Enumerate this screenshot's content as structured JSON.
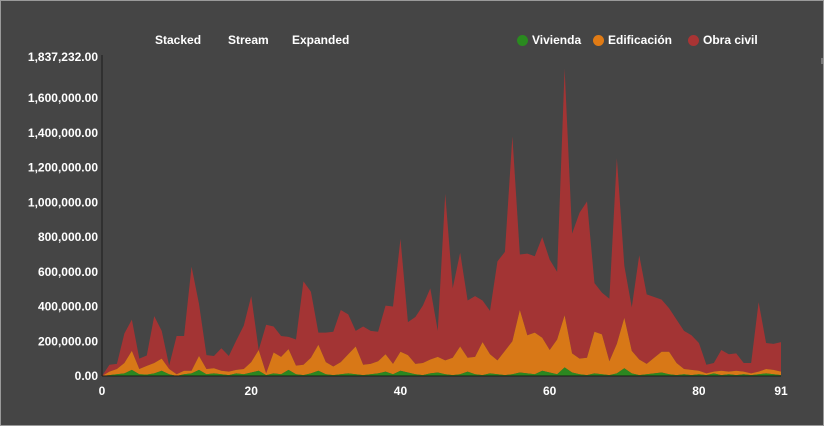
{
  "controls": {
    "stacked": "Stacked",
    "stream": "Stream",
    "expanded": "Expanded"
  },
  "chart_data": {
    "type": "area",
    "stacked": true,
    "x_range": [
      0,
      91
    ],
    "ylim": [
      0,
      1837232
    ],
    "y_max_label": "1,837,232.00",
    "y_ticks": [
      0,
      200000,
      400000,
      600000,
      800000,
      1000000,
      1200000,
      1400000,
      1600000
    ],
    "y_tick_labels": [
      "0.00",
      "200,000.00",
      "400,000.00",
      "600,000.00",
      "800,000.00",
      "1,000,000.00",
      "1,200,000.00",
      "1,400,000.00",
      "1,600,000.00"
    ],
    "x_ticks": [
      0,
      20,
      40,
      60,
      80,
      91
    ],
    "x_tick_labels": [
      "0",
      "20",
      "40",
      "60",
      "80",
      "91"
    ],
    "legend_position": "top-right",
    "grid": false,
    "series": [
      {
        "name": "Vivienda",
        "color": "#2a8a1f",
        "values": [
          0,
          5000,
          10000,
          15000,
          35000,
          10000,
          8000,
          15000,
          30000,
          10000,
          0,
          10000,
          15000,
          35000,
          10000,
          15000,
          10000,
          5000,
          15000,
          10000,
          20000,
          30000,
          5000,
          15000,
          10000,
          35000,
          10000,
          5000,
          15000,
          30000,
          10000,
          5000,
          10000,
          15000,
          10000,
          5000,
          10000,
          15000,
          25000,
          10000,
          30000,
          20000,
          10000,
          5000,
          15000,
          20000,
          10000,
          5000,
          10000,
          25000,
          10000,
          5000,
          15000,
          10000,
          5000,
          10000,
          20000,
          15000,
          10000,
          30000,
          20000,
          10000,
          50000,
          20000,
          10000,
          5000,
          15000,
          10000,
          5000,
          15000,
          45000,
          15000,
          5000,
          10000,
          15000,
          20000,
          10000,
          5000,
          10000,
          5000,
          10000,
          5000,
          15000,
          5000,
          10000,
          5000,
          10000,
          5000,
          10000,
          15000,
          10000,
          5000
        ]
      },
      {
        "name": "Edificación",
        "color": "#e07b15",
        "values": [
          0,
          20000,
          30000,
          60000,
          110000,
          30000,
          50000,
          60000,
          70000,
          30000,
          10000,
          20000,
          15000,
          80000,
          30000,
          30000,
          20000,
          20000,
          20000,
          30000,
          60000,
          120000,
          10000,
          120000,
          100000,
          120000,
          50000,
          60000,
          90000,
          150000,
          70000,
          50000,
          70000,
          110000,
          160000,
          60000,
          60000,
          70000,
          100000,
          60000,
          110000,
          100000,
          60000,
          70000,
          80000,
          90000,
          80000,
          100000,
          160000,
          80000,
          100000,
          190000,
          110000,
          80000,
          140000,
          190000,
          360000,
          220000,
          240000,
          190000,
          130000,
          200000,
          300000,
          110000,
          90000,
          100000,
          240000,
          230000,
          80000,
          170000,
          290000,
          130000,
          90000,
          60000,
          90000,
          120000,
          130000,
          70000,
          30000,
          30000,
          20000,
          10000,
          10000,
          25000,
          15000,
          25000,
          15000,
          10000,
          15000,
          25000,
          25000,
          20000
        ]
      },
      {
        "name": "Obra civil",
        "color": "#a93434",
        "values": [
          0,
          40000,
          30000,
          170000,
          180000,
          60000,
          60000,
          270000,
          160000,
          20000,
          220000,
          200000,
          600000,
          300000,
          80000,
          70000,
          130000,
          90000,
          170000,
          250000,
          380000,
          0,
          280000,
          150000,
          120000,
          70000,
          150000,
          480000,
          380000,
          70000,
          170000,
          200000,
          300000,
          230000,
          90000,
          220000,
          190000,
          170000,
          280000,
          330000,
          650000,
          190000,
          270000,
          330000,
          410000,
          150000,
          960000,
          400000,
          540000,
          330000,
          350000,
          240000,
          250000,
          570000,
          570000,
          1180000,
          320000,
          470000,
          440000,
          580000,
          520000,
          390000,
          1420000,
          690000,
          840000,
          900000,
          280000,
          240000,
          360000,
          1070000,
          300000,
          250000,
          600000,
          400000,
          350000,
          300000,
          250000,
          250000,
          220000,
          200000,
          160000,
          50000,
          50000,
          120000,
          100000,
          100000,
          50000,
          60000,
          400000,
          150000,
          150000,
          170000
        ]
      }
    ]
  }
}
